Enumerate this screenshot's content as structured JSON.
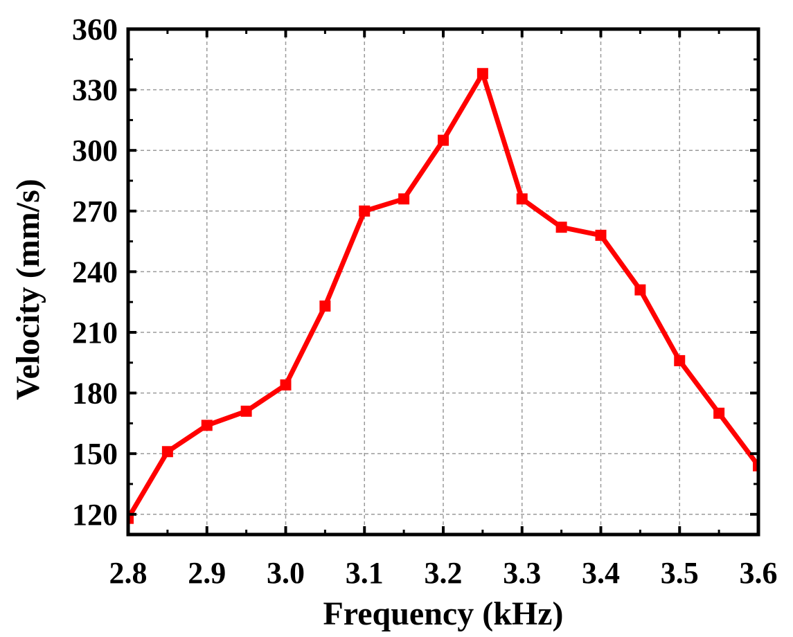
{
  "chart_data": {
    "type": "line",
    "xlabel": "Frequency (kHz)",
    "ylabel": "Velocity (mm/s)",
    "xlim": [
      2.8,
      3.6
    ],
    "ylim": [
      110,
      360
    ],
    "x_ticks": [
      "2.8",
      "2.9",
      "3.0",
      "3.1",
      "3.2",
      "3.3",
      "3.4",
      "3.5",
      "3.6"
    ],
    "y_ticks": [
      "120",
      "150",
      "180",
      "210",
      "240",
      "270",
      "300",
      "330",
      "360"
    ],
    "grid": true,
    "series": [
      {
        "color": "#ff0000",
        "marker": "square",
        "x": [
          2.8,
          2.85,
          2.9,
          2.95,
          3.0,
          3.05,
          3.1,
          3.15,
          3.2,
          3.25,
          3.3,
          3.35,
          3.4,
          3.45,
          3.5,
          3.55,
          3.6
        ],
        "y": [
          118,
          151,
          164,
          171,
          184,
          223,
          270,
          276,
          305,
          338,
          276,
          262,
          258,
          231,
          196,
          170,
          144
        ]
      }
    ]
  }
}
